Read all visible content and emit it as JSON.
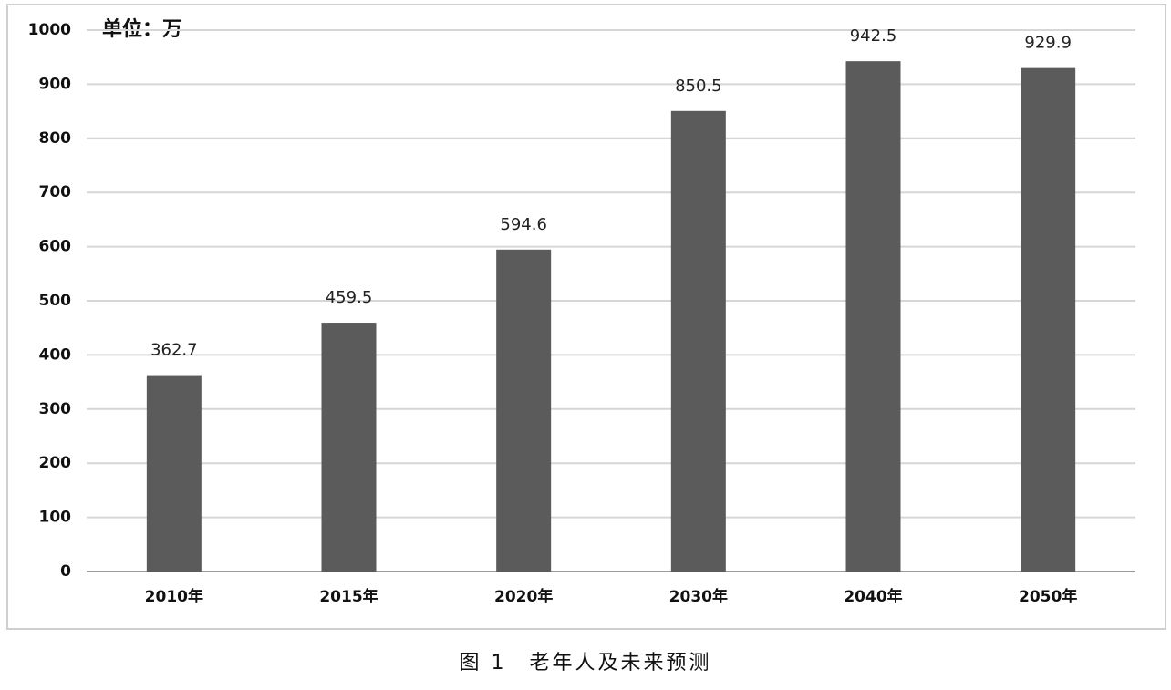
{
  "chart_data": {
    "type": "bar",
    "annotation": "单位：万",
    "caption": "图 1　老年人及未来预测",
    "categories": [
      "2010年",
      "2015年",
      "2020年",
      "2030年",
      "2040年",
      "2050年"
    ],
    "values": [
      362.7,
      459.5,
      594.6,
      850.5,
      942.5,
      929.9
    ],
    "color": "#5b5b5b",
    "ylim": [
      0,
      1000
    ],
    "yticks": [
      0,
      100,
      200,
      300,
      400,
      500,
      600,
      700,
      800,
      900,
      1000
    ],
    "grid": true
  }
}
